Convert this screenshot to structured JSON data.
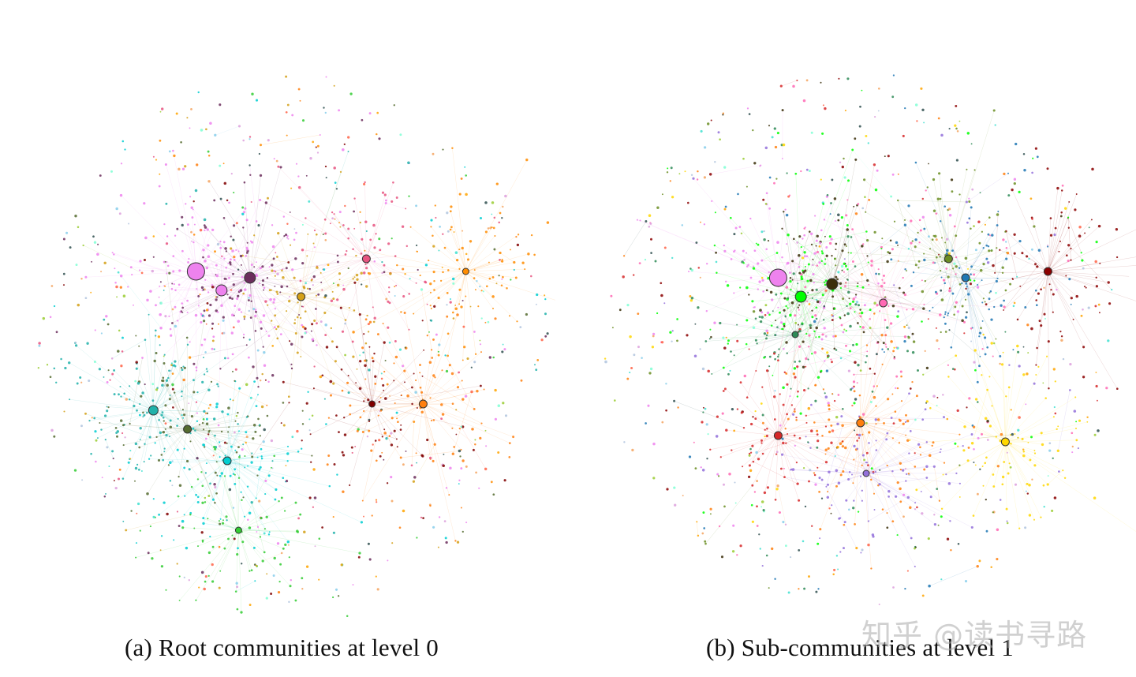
{
  "panels": [
    {
      "caption": "(a) Root communities at level 0",
      "hubs": [
        {
          "color": "#ee82ee"
        },
        {
          "color": "#ee82ee"
        },
        {
          "color": "#6b2d5c"
        },
        {
          "color": "#d4a017"
        },
        {
          "color": "#e75480"
        },
        {
          "color": "#ff8c00"
        },
        {
          "color": "#20b2aa"
        },
        {
          "color": "#556b2f"
        },
        {
          "color": "#00ced1"
        },
        {
          "color": "#ff7f0e"
        },
        {
          "color": "#32cd32"
        },
        {
          "color": "#800000"
        }
      ]
    },
    {
      "caption": "(b) Sub-communities at level 1",
      "hubs": [
        {
          "color": "#ee82ee"
        },
        {
          "color": "#00ff00"
        },
        {
          "color": "#3b2f0b"
        },
        {
          "color": "#ff69b4"
        },
        {
          "color": "#1f77b4"
        },
        {
          "color": "#6b8e23"
        },
        {
          "color": "#8b0000"
        },
        {
          "color": "#d62728"
        },
        {
          "color": "#ff7f0e"
        },
        {
          "color": "#ffd700"
        },
        {
          "color": "#9370db"
        },
        {
          "color": "#2e8b57"
        }
      ]
    }
  ],
  "watermark": "知乎 @读书寻路"
}
